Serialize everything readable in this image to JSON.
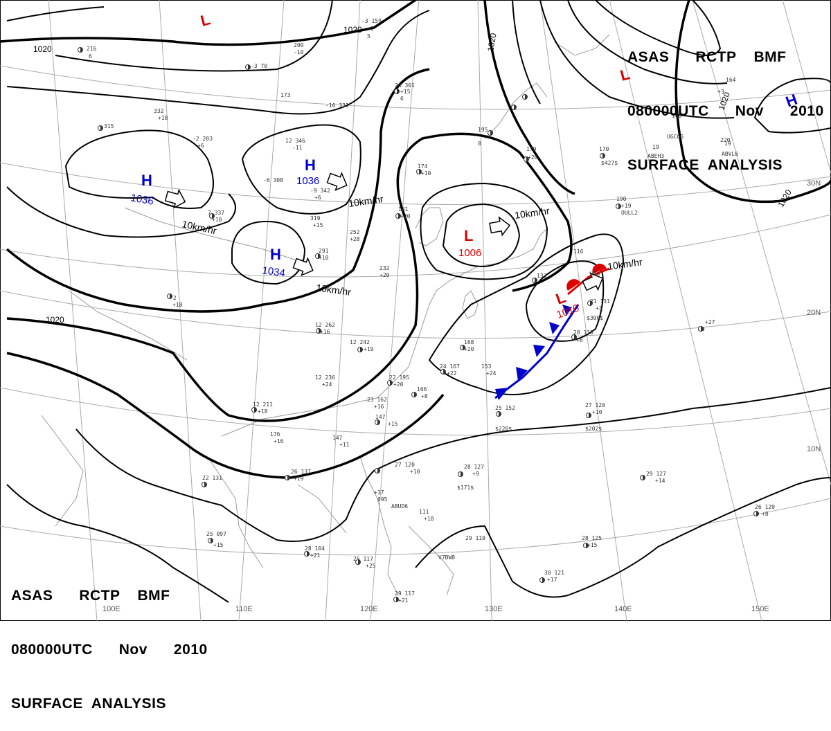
{
  "header": {
    "line1": "ASAS      RCTP    BMF",
    "line2": "080000UTC      Nov      2010",
    "line3": "SURFACE  ANALYSIS"
  },
  "footer": {
    "line1": "ASAS      RCTP    BMF",
    "line2": "080000UTC      Nov      2010",
    "line3": "SURFACE  ANALYSIS"
  },
  "colors": {
    "high": "#0000cc",
    "low": "#dd0000",
    "cold_front": "#0000cc",
    "warm_front": "#dd0000"
  },
  "grid_labels": [
    "110E",
    "120E",
    "130E",
    "140E",
    "150E",
    "30N",
    "20N",
    "10N"
  ],
  "isobar_labels": [
    "1020",
    "1020",
    "1020",
    "1020",
    "1020",
    "1020"
  ],
  "centres": [
    {
      "type": "H",
      "value": "1036"
    },
    {
      "type": "H",
      "value": "1036"
    },
    {
      "type": "H",
      "value": "1034"
    },
    {
      "type": "L",
      "value": "1006"
    },
    {
      "type": "L",
      "value": "1010"
    },
    {
      "type": "L",
      "value": ""
    },
    {
      "type": "L",
      "value": ""
    },
    {
      "type": "H",
      "value": ""
    }
  ],
  "movement_labels": [
    "10km/hr",
    "10km/hr",
    "10km/hr",
    "10km/hr",
    "10km/hr"
  ],
  "stations": [
    "216",
    "6",
    "-3 70",
    "200",
    "-10",
    "-3 159",
    "+1",
    "5",
    "24 301",
    "+15",
    "6",
    "332",
    "+18",
    "315",
    "173",
    "-2 203",
    "+6",
    "-16 331",
    "195",
    "0",
    "12 346",
    "-11",
    "-9 342",
    "+6",
    "-6 308",
    "7 337",
    "+10",
    "319",
    "+15",
    "252",
    "+28",
    "181",
    "+20",
    "174",
    "+10",
    "179",
    "+20",
    "291",
    "+10",
    "232",
    "+20",
    "-2",
    "+18",
    "12 262",
    "+16",
    "12 242",
    "+19",
    "168",
    "+20",
    "12 236",
    "+24",
    "22 195",
    "+20",
    "24 167",
    "+22",
    "153",
    "+24",
    "166",
    "+8",
    "12 211",
    "+18",
    "23 162",
    "+16",
    "147",
    "+15",
    "147",
    "+11",
    "176",
    "+16",
    "25 152",
    "$220$",
    "27 120",
    "+10",
    "$202$",
    "22 131",
    "26 137",
    "+19",
    "27 120",
    "+10",
    "+17",
    "095",
    "ABUD6",
    "28 127",
    "+9",
    "$171$",
    "29 127",
    "+14",
    "25 097",
    "+15",
    "28 104",
    "+21",
    "25 117",
    "+25",
    "29 117",
    "+21",
    "29 110",
    "28 125",
    "+15",
    "30 121",
    "+17",
    "26 120",
    "+8",
    "170",
    "$427$",
    "190",
    "+19",
    "OULL2",
    "133",
    "116",
    "H9W",
    "21 131",
    "+3",
    "$300$",
    "28 118",
    "+6",
    "29",
    "+27",
    "164",
    "+3",
    "160",
    "19",
    "ABEH3",
    "220",
    "ABVL6",
    "19",
    "111",
    "+18",
    "V7BW8",
    "UGCG6"
  ]
}
